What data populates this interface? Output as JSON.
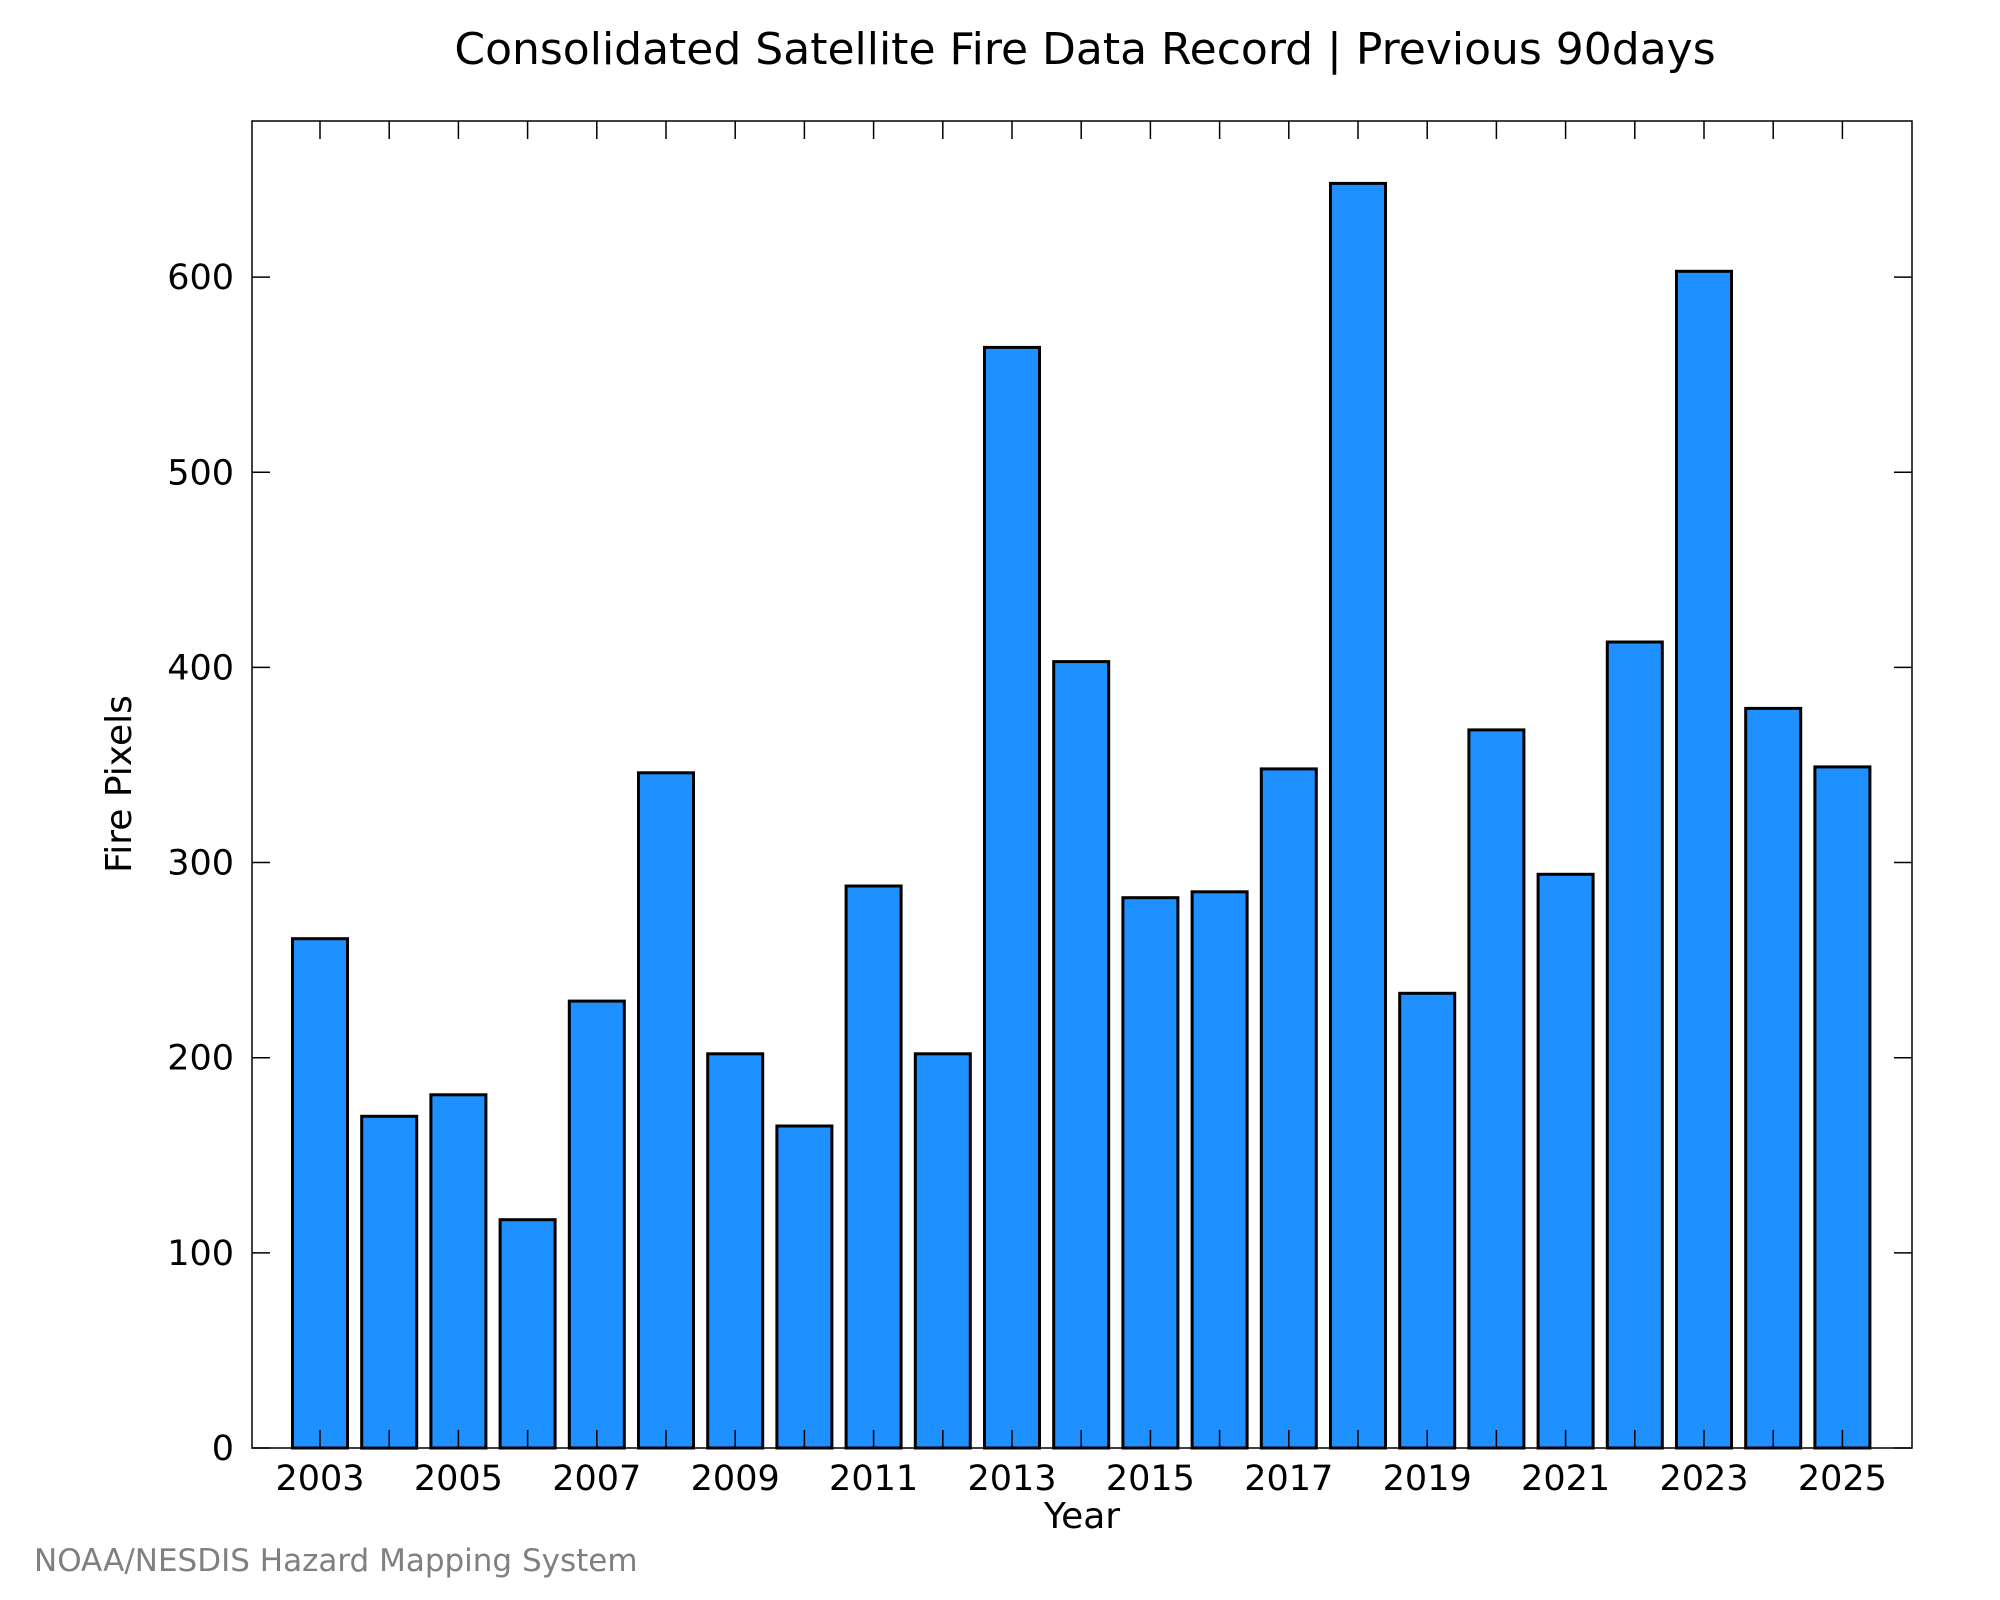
{
  "chart_data": {
    "type": "bar",
    "title": "Consolidated Satellite Fire Data Record | Previous 90days",
    "xlabel": "Year",
    "ylabel": "Fire Pixels",
    "categories": [
      "2003",
      "2004",
      "2005",
      "2006",
      "2007",
      "2008",
      "2009",
      "2010",
      "2011",
      "2012",
      "2013",
      "2014",
      "2015",
      "2016",
      "2017",
      "2018",
      "2019",
      "2020",
      "2021",
      "2022",
      "2023",
      "2024",
      "2025"
    ],
    "values": [
      261,
      170,
      181,
      117,
      229,
      346,
      202,
      165,
      288,
      202,
      564,
      403,
      282,
      285,
      348,
      648,
      233,
      368,
      294,
      413,
      603,
      379,
      349
    ],
    "x_tick_labels": [
      "2003",
      "2005",
      "2007",
      "2009",
      "2011",
      "2013",
      "2015",
      "2017",
      "2019",
      "2021",
      "2023",
      "2025"
    ],
    "y_ticks": [
      0,
      100,
      200,
      300,
      400,
      500,
      600
    ],
    "ylim": [
      0,
      680
    ],
    "grid": false,
    "bar_color": "#1E90FF",
    "bar_edge_color": "#000000"
  },
  "credit": "NOAA/NESDIS Hazard Mapping System"
}
